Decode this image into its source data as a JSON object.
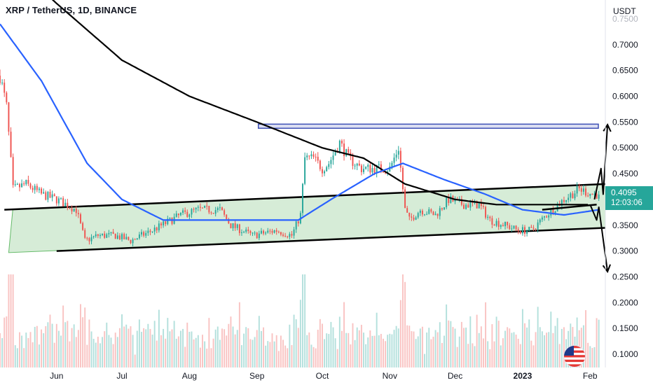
{
  "header": {
    "title": "XRP / TetherUS, 1D, BINANCE"
  },
  "price_tag": {
    "price": "0.4095",
    "countdown": "12:03:06",
    "color": "#26a69a"
  },
  "colors": {
    "up": "#26a69a",
    "down": "#ef5350",
    "ma_blue": "#2962ff",
    "ma_black": "#000000",
    "channel_fill": "#c8e6c9",
    "resistance_zone": "#3f51b5"
  },
  "icons": {
    "flag": "us-flag-icon"
  },
  "chart_data": {
    "type": "candlestick",
    "title": "XRP / TetherUS, 1D, BINANCE",
    "y_axis_unit": "USDT",
    "y_ticks": [
      "0.1000",
      "0.1500",
      "0.2000",
      "0.2500",
      "0.3000",
      "0.3500",
      "0.4000",
      "0.4500",
      "0.5000",
      "0.5500",
      "0.6000",
      "0.6500",
      "0.7000",
      "0.7500"
    ],
    "x_ticks": [
      "Jun",
      "Jul",
      "Aug",
      "Sep",
      "Oct",
      "Nov",
      "Dec",
      "2023",
      "Feb"
    ],
    "x_range": [
      "2022-05-06",
      "2023-02-08"
    ],
    "y_range": [
      0.08,
      0.76
    ],
    "last_price": 0.4095,
    "price_path": [
      [
        "2022-05-06",
        0.64
      ],
      [
        "2022-05-09",
        0.58
      ],
      [
        "2022-05-12",
        0.42
      ],
      [
        "2022-05-18",
        0.43
      ],
      [
        "2022-05-25",
        0.41
      ],
      [
        "2022-06-01",
        0.4
      ],
      [
        "2022-06-10",
        0.38
      ],
      [
        "2022-06-14",
        0.32
      ],
      [
        "2022-06-20",
        0.33
      ],
      [
        "2022-06-28",
        0.33
      ],
      [
        "2022-07-05",
        0.32
      ],
      [
        "2022-07-15",
        0.34
      ],
      [
        "2022-07-28",
        0.37
      ],
      [
        "2022-08-05",
        0.38
      ],
      [
        "2022-08-15",
        0.38
      ],
      [
        "2022-08-20",
        0.35
      ],
      [
        "2022-08-30",
        0.33
      ],
      [
        "2022-09-10",
        0.34
      ],
      [
        "2022-09-17",
        0.33
      ],
      [
        "2022-09-21",
        0.37
      ],
      [
        "2022-09-23",
        0.48
      ],
      [
        "2022-09-27",
        0.48
      ],
      [
        "2022-10-01",
        0.46
      ],
      [
        "2022-10-04",
        0.47
      ],
      [
        "2022-10-09",
        0.51
      ],
      [
        "2022-10-13",
        0.48
      ],
      [
        "2022-10-19",
        0.46
      ],
      [
        "2022-10-26",
        0.46
      ],
      [
        "2022-11-01",
        0.46
      ],
      [
        "2022-11-05",
        0.5
      ],
      [
        "2022-11-08",
        0.38
      ],
      [
        "2022-11-10",
        0.36
      ],
      [
        "2022-11-15",
        0.38
      ],
      [
        "2022-11-22",
        0.37
      ],
      [
        "2022-11-28",
        0.4
      ],
      [
        "2022-12-05",
        0.39
      ],
      [
        "2022-12-12",
        0.39
      ],
      [
        "2022-12-17",
        0.36
      ],
      [
        "2022-12-24",
        0.35
      ],
      [
        "2022-12-30",
        0.34
      ],
      [
        "2023-01-05",
        0.34
      ],
      [
        "2023-01-12",
        0.37
      ],
      [
        "2023-01-20",
        0.4
      ],
      [
        "2023-01-27",
        0.42
      ],
      [
        "2023-02-02",
        0.41
      ],
      [
        "2023-02-05",
        0.4095
      ]
    ],
    "ma_200_black": [
      [
        "2022-05-06",
        0.88
      ],
      [
        "2022-06-01",
        0.78
      ],
      [
        "2022-07-01",
        0.67
      ],
      [
        "2022-08-01",
        0.6
      ],
      [
        "2022-09-01",
        0.55
      ],
      [
        "2022-10-01",
        0.5
      ],
      [
        "2022-10-20",
        0.48
      ],
      [
        "2022-11-08",
        0.43
      ],
      [
        "2022-12-01",
        0.4
      ],
      [
        "2022-12-20",
        0.39
      ],
      [
        "2023-01-10",
        0.39
      ],
      [
        "2023-01-31",
        0.39
      ]
    ],
    "ma_50_blue": [
      [
        "2022-05-06",
        0.74
      ],
      [
        "2022-05-25",
        0.63
      ],
      [
        "2022-06-15",
        0.47
      ],
      [
        "2022-07-01",
        0.4
      ],
      [
        "2022-07-20",
        0.36
      ],
      [
        "2022-08-10",
        0.36
      ],
      [
        "2022-09-01",
        0.36
      ],
      [
        "2022-09-20",
        0.36
      ],
      [
        "2022-10-05",
        0.4
      ],
      [
        "2022-10-25",
        0.45
      ],
      [
        "2022-11-07",
        0.47
      ],
      [
        "2022-11-25",
        0.44
      ],
      [
        "2022-12-15",
        0.41
      ],
      [
        "2023-01-01",
        0.38
      ],
      [
        "2023-01-20",
        0.37
      ],
      [
        "2023-02-05",
        0.38
      ]
    ],
    "drawings": {
      "resistance_zone": {
        "from": "2022-09-01",
        "to": "2023-02-08",
        "y_low": 0.538,
        "y_high": 0.546
      },
      "channel_top": [
        [
          "2022-05-08",
          0.38
        ],
        [
          "2023-02-08",
          0.43
        ]
      ],
      "channel_bottom": [
        [
          "2022-06-01",
          0.3
        ],
        [
          "2023-02-08",
          0.345
        ]
      ],
      "upper_inner_line": [
        [
          "2023-01-10",
          0.38
        ],
        [
          "2023-02-04",
          0.39
        ]
      ],
      "scenario_up": [
        [
          "2023-02-03",
          0.4
        ],
        [
          "2023-02-06",
          0.46
        ],
        [
          "2023-02-07",
          0.41
        ],
        [
          "2023-02-09",
          0.545
        ]
      ],
      "scenario_down": [
        [
          "2023-02-01",
          0.39
        ],
        [
          "2023-02-04",
          0.36
        ],
        [
          "2023-02-05",
          0.385
        ],
        [
          "2023-02-09",
          0.26
        ]
      ]
    },
    "volume_max_label": "",
    "grid": false,
    "legend": "none"
  }
}
